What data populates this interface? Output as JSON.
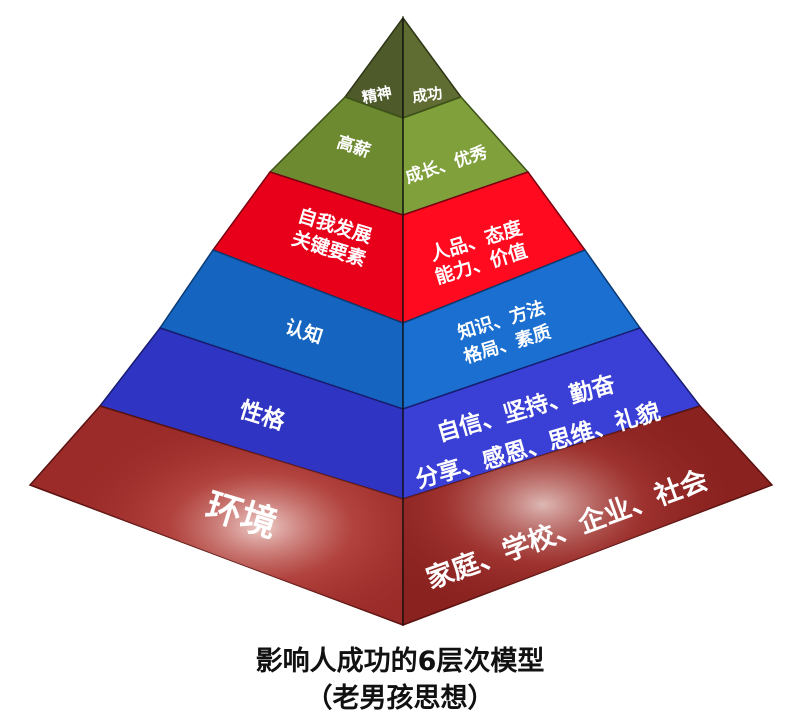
{
  "title": "影响人成功的6层次模型",
  "subtitle": "（老男孩思想）",
  "layers": [
    {
      "left": [
        "精神"
      ],
      "right": [
        "成功"
      ],
      "colors": {
        "left": "#4e5a2a",
        "right": "#5f6c32"
      }
    },
    {
      "left": [
        "高薪"
      ],
      "right": [
        "成长、优秀"
      ],
      "colors": {
        "left": "#6d8a30",
        "right": "#7fa03a"
      }
    },
    {
      "left": [
        "自我发展",
        "关键要素"
      ],
      "right": [
        "人品、态度",
        "能力、价值"
      ],
      "colors": {
        "left": "#e8001a",
        "right": "#ff0a1e"
      }
    },
    {
      "left": [
        "认知"
      ],
      "right": [
        "知识、方法",
        "格局、素质"
      ],
      "colors": {
        "left": "#1565c0",
        "right": "#1a6fd0"
      }
    },
    {
      "left": [
        "性格"
      ],
      "right": [
        "自信、坚持、勤奋",
        "分享、感恩、思维、礼貌"
      ],
      "colors": {
        "left": "#2f35c2",
        "right": "#3a40d6"
      }
    },
    {
      "left": [
        "环境"
      ],
      "right": [
        "家庭、学校、企业、社会"
      ],
      "colors": {
        "left": "#9b2b28",
        "right": "#8a2220"
      }
    }
  ]
}
